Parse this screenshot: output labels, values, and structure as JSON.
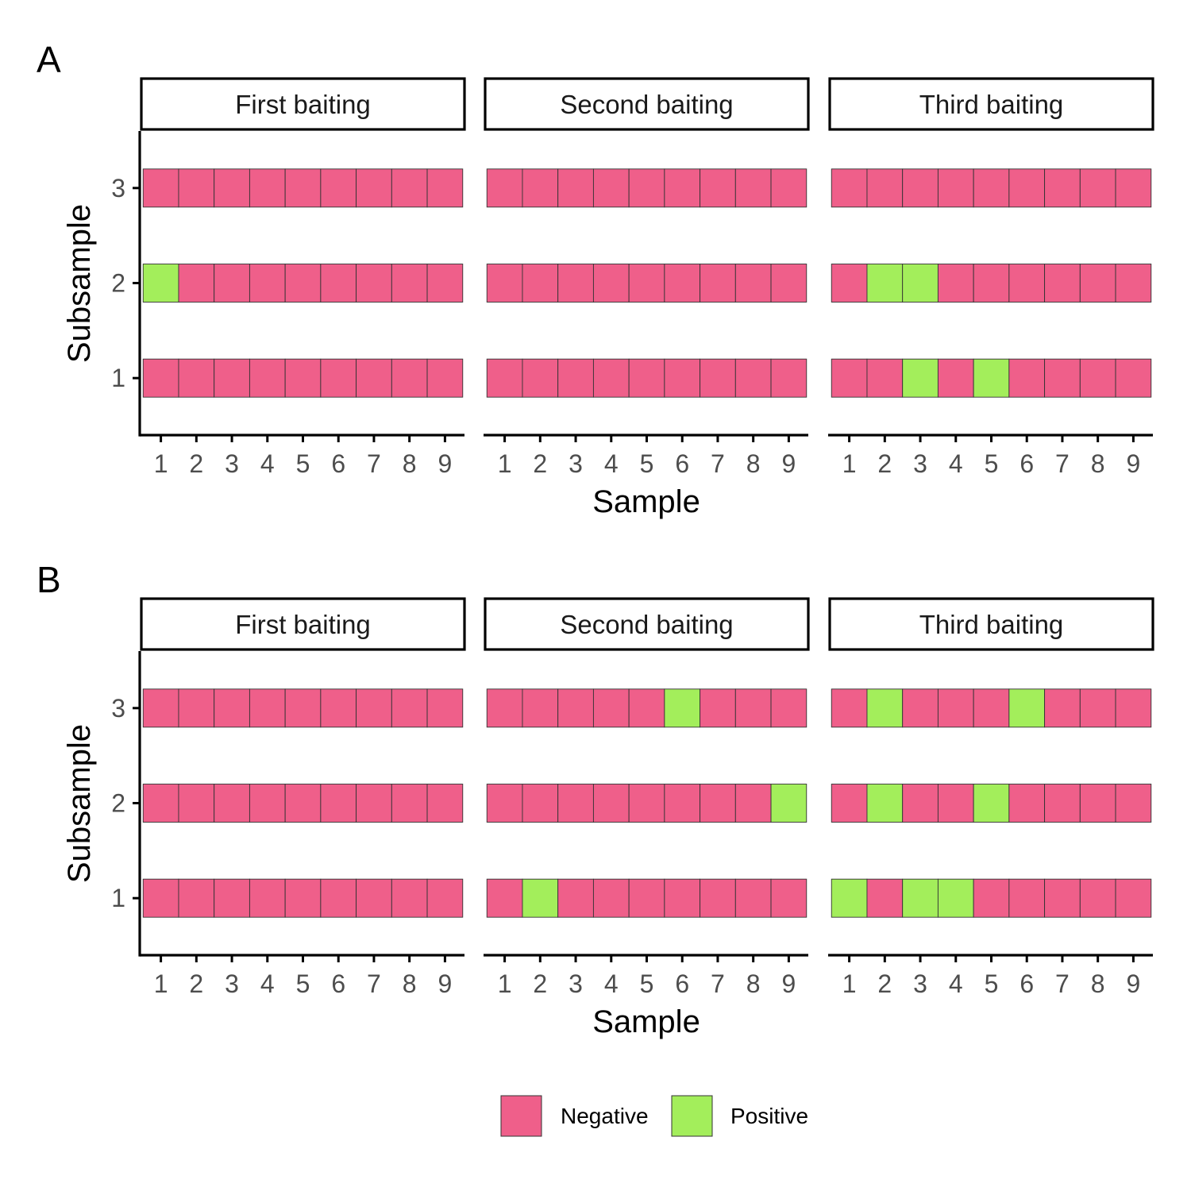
{
  "colors": {
    "negative": "#EF5F8A",
    "positive": "#A3EE5B",
    "cell_border": "#333333",
    "axis": "#000000",
    "tick_label": "#4D4D4D"
  },
  "legend": {
    "items": [
      {
        "key": "negative",
        "label": "Negative"
      },
      {
        "key": "positive",
        "label": "Positive"
      }
    ]
  },
  "chart_data": [
    {
      "type": "heatmap",
      "tag": "A",
      "xlabel": "Sample",
      "ylabel": "Subsample",
      "x_ticks": [
        "1",
        "2",
        "3",
        "4",
        "5",
        "6",
        "7",
        "8",
        "9"
      ],
      "y_ticks": [
        "1",
        "2",
        "3"
      ],
      "facets": [
        {
          "label": "First baiting",
          "positives": {
            "1": [],
            "2": [
              1
            ],
            "3": []
          }
        },
        {
          "label": "Second baiting",
          "positives": {
            "1": [],
            "2": [],
            "3": []
          }
        },
        {
          "label": "Third baiting",
          "positives": {
            "1": [
              3,
              5
            ],
            "2": [
              2,
              3
            ],
            "3": []
          }
        }
      ]
    },
    {
      "type": "heatmap",
      "tag": "B",
      "xlabel": "Sample",
      "ylabel": "Subsample",
      "x_ticks": [
        "1",
        "2",
        "3",
        "4",
        "5",
        "6",
        "7",
        "8",
        "9"
      ],
      "y_ticks": [
        "1",
        "2",
        "3"
      ],
      "facets": [
        {
          "label": "First baiting",
          "positives": {
            "1": [],
            "2": [],
            "3": []
          }
        },
        {
          "label": "Second baiting",
          "positives": {
            "1": [
              2
            ],
            "2": [
              9
            ],
            "3": [
              6
            ]
          }
        },
        {
          "label": "Third baiting",
          "positives": {
            "1": [
              1,
              3,
              4
            ],
            "2": [
              2,
              5
            ],
            "3": [
              2,
              6
            ]
          }
        }
      ]
    }
  ]
}
